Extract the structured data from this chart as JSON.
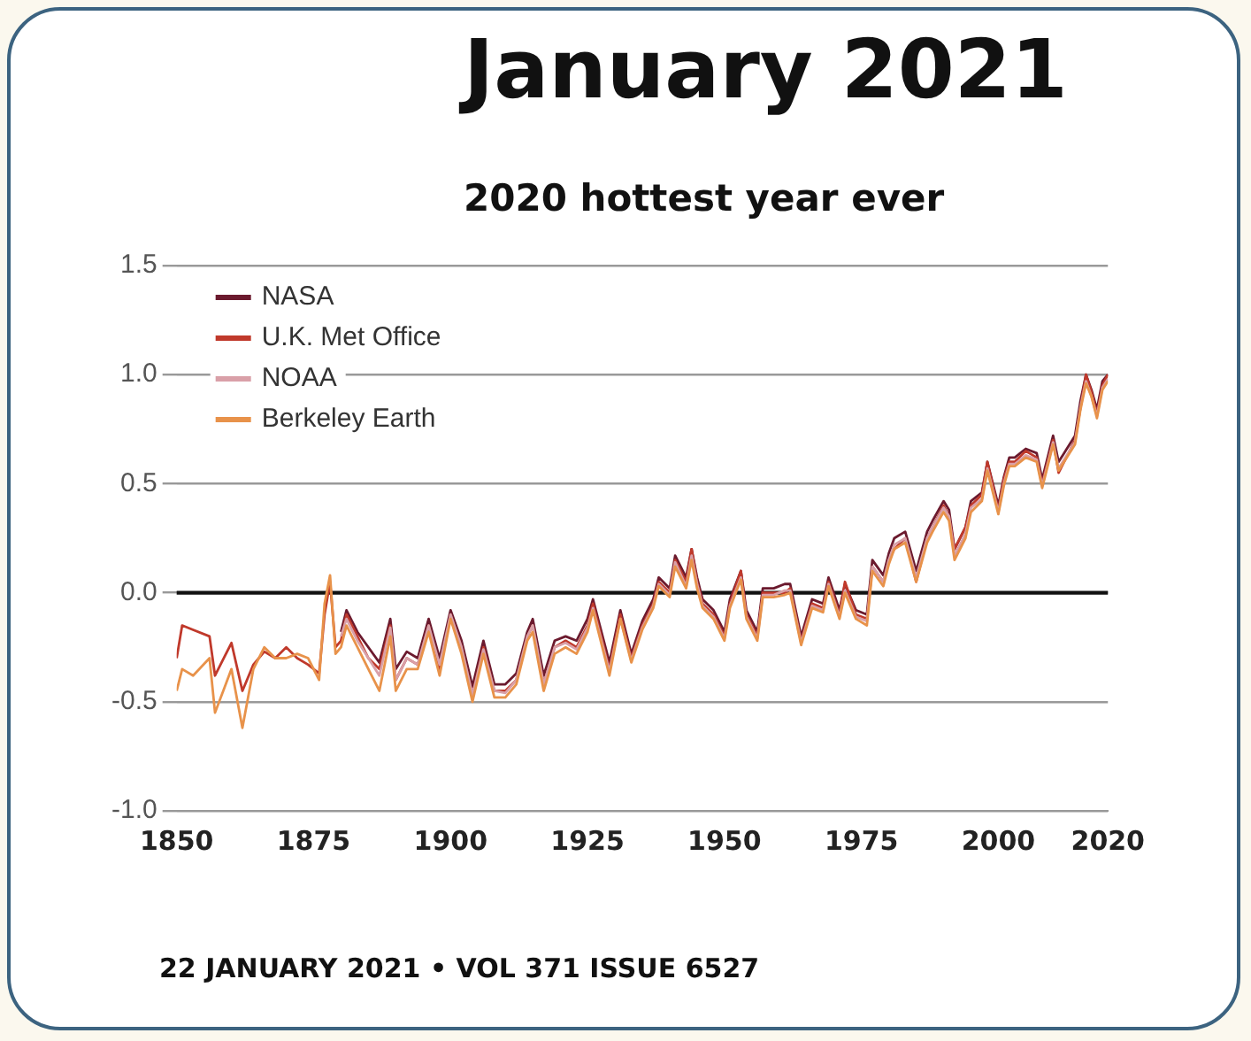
{
  "chart_data": {
    "type": "line",
    "title": "January 2021",
    "subtitle": "2020 hottest year ever",
    "annotations": [
      "22 JANUARY 2021 • VOL 371 ISSUE 6527"
    ],
    "xlim": [
      1850,
      2020
    ],
    "xticks": [
      1850,
      1875,
      1900,
      1925,
      1950,
      1975,
      2000,
      2020
    ],
    "ylim": [
      -1.0,
      1.5
    ],
    "yticks": [
      {
        "value": -1.0,
        "label": "-1.0"
      },
      {
        "value": -0.5,
        "label": "-0.5"
      },
      {
        "value": 0,
        "label": "0.0"
      },
      {
        "value": 0.5,
        "label": "0.5"
      },
      {
        "value": 1.0,
        "label": "1.0"
      },
      {
        "value": 1.5,
        "label": "1.5"
      }
    ],
    "grid": "y",
    "legend": "top left",
    "marker": "none",
    "line_style": "solid",
    "ref_lines": [
      {
        "axis": "y",
        "value": 0,
        "color": "#111111"
      }
    ],
    "series": [
      {
        "name": "NASA",
        "color": "#6b1a2e",
        "x": [
          1880,
          1881,
          1883,
          1885,
          1887,
          1889,
          1890,
          1892,
          1894,
          1896,
          1898,
          1900,
          1902,
          1904,
          1906,
          1908,
          1910,
          1912,
          1914,
          1915,
          1917,
          1919,
          1921,
          1923,
          1925,
          1926,
          1929,
          1931,
          1933,
          1935,
          1937,
          1938,
          1940,
          1941,
          1943,
          1944,
          1945,
          1946,
          1948,
          1950,
          1951,
          1953,
          1954,
          1956,
          1957,
          1959,
          1961,
          1962,
          1964,
          1966,
          1968,
          1969,
          1971,
          1972,
          1974,
          1976,
          1977,
          1979,
          1980,
          1981,
          1983,
          1985,
          1987,
          1988,
          1990,
          1991,
          1992,
          1994,
          1995,
          1997,
          1998,
          2000,
          2001,
          2002,
          2003,
          2005,
          2007,
          2008,
          2010,
          2011,
          2012,
          2014,
          2015,
          2016,
          2017,
          2018,
          2019,
          2020
        ],
        "values": [
          -0.18,
          -0.08,
          -0.18,
          -0.25,
          -0.32,
          -0.12,
          -0.35,
          -0.27,
          -0.3,
          -0.12,
          -0.3,
          -0.08,
          -0.22,
          -0.43,
          -0.22,
          -0.42,
          -0.42,
          -0.37,
          -0.18,
          -0.12,
          -0.38,
          -0.22,
          -0.2,
          -0.22,
          -0.12,
          -0.03,
          -0.32,
          -0.08,
          -0.28,
          -0.13,
          -0.03,
          0.07,
          0.02,
          0.17,
          0.07,
          0.2,
          0.07,
          -0.03,
          -0.08,
          -0.18,
          -0.03,
          0.1,
          -0.08,
          -0.18,
          0.02,
          0.02,
          0.04,
          0.04,
          -0.2,
          -0.03,
          -0.05,
          0.07,
          -0.08,
          0.04,
          -0.08,
          -0.1,
          0.15,
          0.08,
          0.18,
          0.25,
          0.28,
          0.1,
          0.28,
          0.33,
          0.42,
          0.38,
          0.2,
          0.3,
          0.42,
          0.46,
          0.6,
          0.4,
          0.53,
          0.62,
          0.62,
          0.66,
          0.64,
          0.52,
          0.72,
          0.6,
          0.64,
          0.72,
          0.88,
          1.0,
          0.93,
          0.84,
          0.97,
          1.0
        ]
      },
      {
        "name": "U.K. Met Office",
        "color": "#c0392b",
        "x": [
          1850,
          1851,
          1853,
          1856,
          1857,
          1860,
          1862,
          1864,
          1866,
          1868,
          1870,
          1872,
          1874,
          1876,
          1877,
          1878,
          1879,
          1880,
          1881,
          1883,
          1885,
          1887,
          1889,
          1890,
          1892,
          1894,
          1896,
          1898,
          1900,
          1902,
          1904,
          1906,
          1908,
          1910,
          1912,
          1914,
          1915,
          1917,
          1919,
          1921,
          1923,
          1925,
          1926,
          1929,
          1931,
          1933,
          1935,
          1937,
          1938,
          1940,
          1941,
          1943,
          1944,
          1945,
          1946,
          1948,
          1950,
          1951,
          1953,
          1954,
          1956,
          1957,
          1959,
          1961,
          1962,
          1964,
          1966,
          1968,
          1969,
          1971,
          1972,
          1974,
          1976,
          1977,
          1979,
          1980,
          1981,
          1983,
          1985,
          1987,
          1988,
          1990,
          1991,
          1992,
          1994,
          1995,
          1997,
          1998,
          2000,
          2001,
          2002,
          2003,
          2005,
          2007,
          2008,
          2010,
          2011,
          2012,
          2014,
          2015,
          2016,
          2017,
          2018,
          2019,
          2020
        ],
        "values": [
          -0.3,
          -0.15,
          -0.17,
          -0.2,
          -0.38,
          -0.23,
          -0.45,
          -0.33,
          -0.27,
          -0.3,
          -0.25,
          -0.3,
          -0.33,
          -0.37,
          -0.1,
          0.05,
          -0.25,
          -0.22,
          -0.1,
          -0.2,
          -0.3,
          -0.35,
          -0.15,
          -0.4,
          -0.3,
          -0.33,
          -0.15,
          -0.35,
          -0.1,
          -0.25,
          -0.47,
          -0.25,
          -0.45,
          -0.45,
          -0.4,
          -0.2,
          -0.15,
          -0.42,
          -0.25,
          -0.22,
          -0.25,
          -0.15,
          -0.05,
          -0.35,
          -0.1,
          -0.3,
          -0.15,
          -0.05,
          0.05,
          0.0,
          0.15,
          0.05,
          0.2,
          0.05,
          -0.05,
          -0.1,
          -0.2,
          -0.05,
          0.1,
          -0.1,
          -0.2,
          0.0,
          0.0,
          0.0,
          0.02,
          -0.22,
          -0.05,
          -0.07,
          0.05,
          -0.1,
          0.05,
          -0.1,
          -0.12,
          0.12,
          0.05,
          0.15,
          0.2,
          0.25,
          0.05,
          0.25,
          0.3,
          0.4,
          0.35,
          0.2,
          0.3,
          0.4,
          0.45,
          0.6,
          0.38,
          0.52,
          0.6,
          0.6,
          0.65,
          0.62,
          0.5,
          0.7,
          0.55,
          0.6,
          0.7,
          0.85,
          1.0,
          0.92,
          0.82,
          0.95,
          1.0
        ]
      },
      {
        "name": "NOAA",
        "color": "#d9a0a8",
        "x": [
          1880,
          1881,
          1883,
          1885,
          1887,
          1889,
          1890,
          1892,
          1894,
          1896,
          1898,
          1900,
          1902,
          1904,
          1906,
          1908,
          1910,
          1912,
          1914,
          1915,
          1917,
          1919,
          1921,
          1923,
          1925,
          1926,
          1929,
          1931,
          1933,
          1935,
          1937,
          1938,
          1940,
          1941,
          1943,
          1944,
          1945,
          1946,
          1948,
          1950,
          1951,
          1953,
          1954,
          1956,
          1957,
          1959,
          1961,
          1962,
          1964,
          1966,
          1968,
          1969,
          1971,
          1972,
          1974,
          1976,
          1977,
          1979,
          1980,
          1981,
          1983,
          1985,
          1987,
          1988,
          1990,
          1991,
          1992,
          1994,
          1995,
          1997,
          1998,
          2000,
          2001,
          2002,
          2003,
          2005,
          2007,
          2008,
          2010,
          2011,
          2012,
          2014,
          2015,
          2016,
          2017,
          2018,
          2019,
          2020
        ],
        "values": [
          -0.2,
          -0.12,
          -0.22,
          -0.3,
          -0.38,
          -0.16,
          -0.4,
          -0.3,
          -0.33,
          -0.15,
          -0.33,
          -0.1,
          -0.25,
          -0.47,
          -0.26,
          -0.45,
          -0.46,
          -0.4,
          -0.2,
          -0.15,
          -0.42,
          -0.25,
          -0.23,
          -0.26,
          -0.16,
          -0.07,
          -0.36,
          -0.12,
          -0.31,
          -0.16,
          -0.06,
          0.04,
          -0.01,
          0.14,
          0.03,
          0.17,
          0.04,
          -0.06,
          -0.11,
          -0.21,
          -0.06,
          0.07,
          -0.11,
          -0.21,
          -0.01,
          -0.01,
          0.01,
          0.01,
          -0.23,
          -0.06,
          -0.08,
          0.04,
          -0.11,
          0.01,
          -0.11,
          -0.13,
          0.12,
          0.05,
          0.15,
          0.22,
          0.25,
          0.07,
          0.25,
          0.3,
          0.39,
          0.35,
          0.17,
          0.27,
          0.39,
          0.43,
          0.57,
          0.37,
          0.5,
          0.59,
          0.59,
          0.63,
          0.61,
          0.49,
          0.69,
          0.57,
          0.61,
          0.69,
          0.85,
          0.97,
          0.9,
          0.81,
          0.94,
          0.98
        ]
      },
      {
        "name": "Berkeley Earth",
        "color": "#e8924a",
        "x": [
          1850,
          1851,
          1853,
          1856,
          1857,
          1860,
          1862,
          1864,
          1866,
          1868,
          1870,
          1872,
          1874,
          1876,
          1877,
          1878,
          1879,
          1880,
          1881,
          1883,
          1885,
          1887,
          1889,
          1890,
          1892,
          1894,
          1896,
          1898,
          1900,
          1902,
          1904,
          1906,
          1908,
          1910,
          1912,
          1914,
          1915,
          1917,
          1919,
          1921,
          1923,
          1925,
          1926,
          1929,
          1931,
          1933,
          1935,
          1937,
          1938,
          1940,
          1941,
          1943,
          1944,
          1945,
          1946,
          1948,
          1950,
          1951,
          1953,
          1954,
          1956,
          1957,
          1959,
          1961,
          1962,
          1964,
          1966,
          1968,
          1969,
          1971,
          1972,
          1974,
          1976,
          1977,
          1979,
          1980,
          1981,
          1983,
          1985,
          1987,
          1988,
          1990,
          1991,
          1992,
          1994,
          1995,
          1997,
          1998,
          2000,
          2001,
          2002,
          2003,
          2005,
          2007,
          2008,
          2010,
          2011,
          2012,
          2014,
          2015,
          2016,
          2017,
          2018,
          2019,
          2020
        ],
        "values": [
          -0.45,
          -0.35,
          -0.38,
          -0.3,
          -0.55,
          -0.35,
          -0.62,
          -0.35,
          -0.25,
          -0.3,
          -0.3,
          -0.28,
          -0.3,
          -0.4,
          -0.05,
          0.08,
          -0.28,
          -0.25,
          -0.15,
          -0.25,
          -0.35,
          -0.45,
          -0.2,
          -0.45,
          -0.35,
          -0.35,
          -0.18,
          -0.38,
          -0.12,
          -0.28,
          -0.5,
          -0.28,
          -0.48,
          -0.48,
          -0.42,
          -0.22,
          -0.18,
          -0.45,
          -0.28,
          -0.25,
          -0.28,
          -0.18,
          -0.08,
          -0.38,
          -0.12,
          -0.32,
          -0.17,
          -0.07,
          0.03,
          -0.02,
          0.12,
          0.02,
          0.15,
          0.02,
          -0.07,
          -0.12,
          -0.22,
          -0.07,
          0.06,
          -0.12,
          -0.22,
          -0.02,
          -0.02,
          -0.01,
          0.0,
          -0.24,
          -0.07,
          -0.09,
          0.03,
          -0.12,
          0.0,
          -0.12,
          -0.15,
          0.1,
          0.03,
          0.13,
          0.2,
          0.23,
          0.05,
          0.23,
          0.28,
          0.37,
          0.33,
          0.15,
          0.25,
          0.37,
          0.42,
          0.56,
          0.36,
          0.49,
          0.58,
          0.58,
          0.62,
          0.6,
          0.48,
          0.68,
          0.56,
          0.6,
          0.68,
          0.84,
          0.96,
          0.9,
          0.8,
          0.93,
          0.97
        ]
      }
    ]
  }
}
